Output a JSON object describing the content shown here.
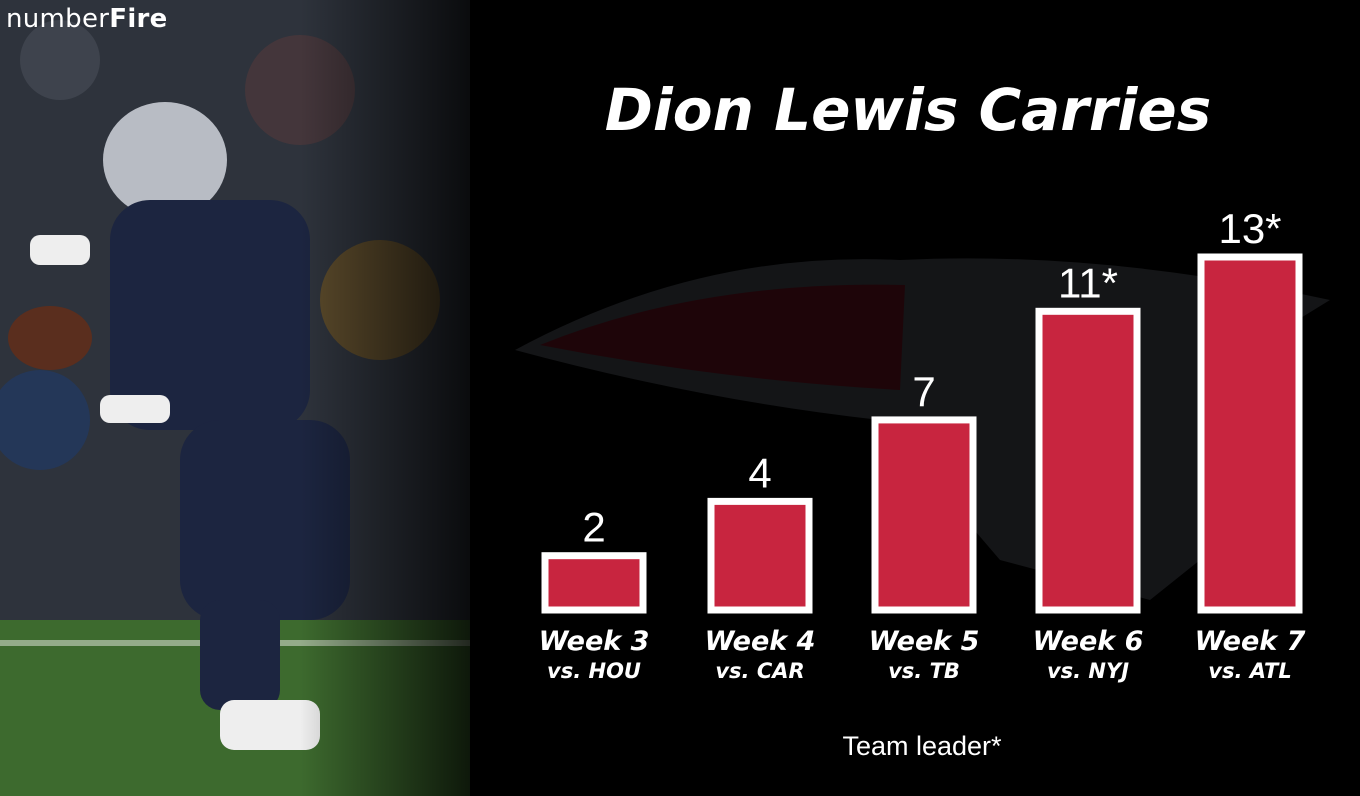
{
  "brand": {
    "logo_regular": "number",
    "logo_bold": "Fire"
  },
  "colors": {
    "bar_fill": "#c8253f",
    "bar_stroke": "#ffffff",
    "background": "#000000"
  },
  "chart_data": {
    "type": "bar",
    "title": "Dion Lewis Carries",
    "categories": [
      "Week 3",
      "Week 4",
      "Week 5",
      "Week 6",
      "Week 7"
    ],
    "opponents": [
      "vs. HOU",
      "vs. CAR",
      "vs. TB",
      "vs. NYJ",
      "vs. ATL"
    ],
    "values": [
      2,
      4,
      7,
      11,
      13
    ],
    "value_labels": [
      "2",
      "4",
      "7",
      "11*",
      "13*"
    ],
    "footnote": "Team leader*",
    "xlabel": "",
    "ylabel": "",
    "ylim": [
      0,
      13
    ],
    "grid": false,
    "legend": "none"
  }
}
